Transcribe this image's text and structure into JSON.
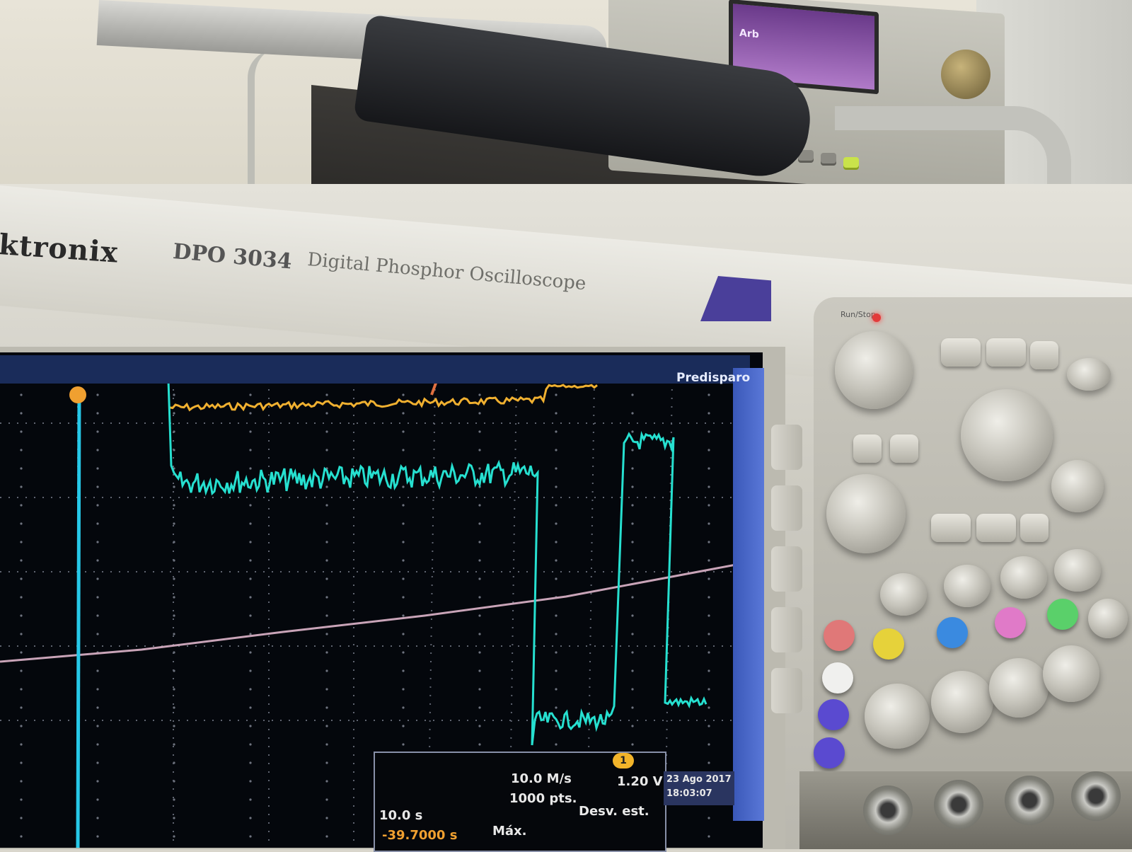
{
  "instrument": {
    "brand": "ktronix",
    "model": "DPO 3034",
    "description": "Digital Phosphor Oscilloscope"
  },
  "screen": {
    "status_label": "Predisparo",
    "trigger_badge": "1",
    "readouts": {
      "timebase": "10.0 s",
      "sample_rate": "10.0 M/s",
      "record_length": "1000 pts.",
      "trigger_level": "1.20 V",
      "position": "-39.7000 s",
      "acq_max": "Máx.",
      "acq_mode": "Desv. est.",
      "date": "23 Ago 2017",
      "time": "18:03:07"
    }
  },
  "waveforms": {
    "colors": {
      "ch1": "#f0b030",
      "ch2": "#26e0d0",
      "ref": "#c9a4b8",
      "grid": "#6f7480"
    }
  },
  "generator": {
    "screen_text": "Arb"
  },
  "panel": {
    "run_label": "Run/Stop"
  }
}
